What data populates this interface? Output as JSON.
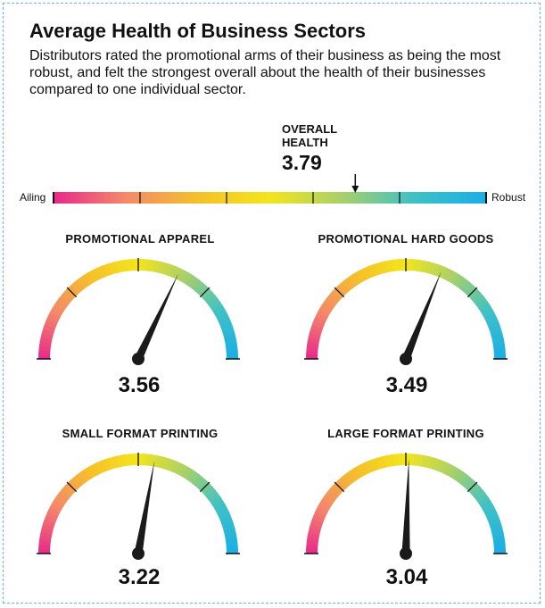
{
  "chart_data": {
    "type": "gauge",
    "title": "Average Health of Business Sectors",
    "subtitle": "Distributors rated the promotional arms of their business as being the most robust, and felt the strongest overall about the health of their businesses compared to one individual sector.",
    "scale": {
      "min": 1,
      "max": 5,
      "min_label": "Ailing",
      "max_label": "Robust"
    },
    "overall": {
      "label": "OVERALL\nHEALTH",
      "value": 3.79,
      "value_text": "3.79"
    },
    "gauges": [
      {
        "label": "PROMOTIONAL APPAREL",
        "value": 3.56,
        "value_text": "3.56"
      },
      {
        "label": "PROMOTIONAL HARD GOODS",
        "value": 3.49,
        "value_text": "3.49"
      },
      {
        "label": "SMALL FORMAT PRINTING",
        "value": 3.22,
        "value_text": "3.22"
      },
      {
        "label": "LARGE FORMAT PRINTING",
        "value": 3.04,
        "value_text": "3.04"
      }
    ],
    "colors": [
      "#e8288a",
      "#f4896a",
      "#f5c02a",
      "#f3e51c",
      "#a9d06a",
      "#3fc1c5",
      "#1aaee6"
    ]
  }
}
